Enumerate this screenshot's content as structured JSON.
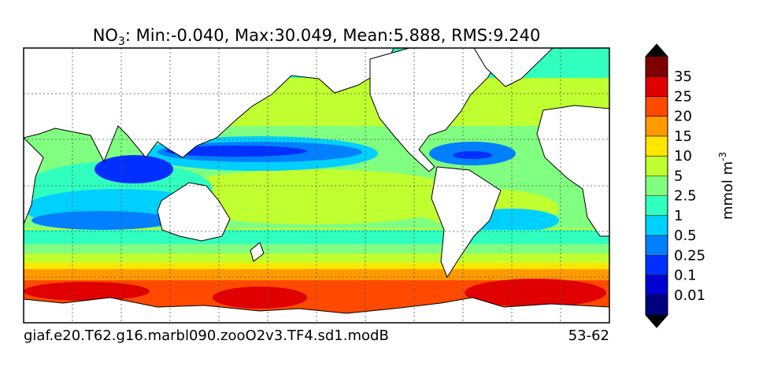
{
  "title": {
    "species": "NO",
    "subscript": "3",
    "stats": ": Min:-0.040, Max:30.049, Mean:5.888, RMS:9.240"
  },
  "colorbar": {
    "labels": [
      "0.01",
      "0.1",
      "0.25",
      "0.5",
      "1",
      "2.5",
      "5",
      "10",
      "15",
      "20",
      "25",
      "35"
    ],
    "colors": [
      "#00007f",
      "#0000d0",
      "#0030ff",
      "#0080ff",
      "#00d0ff",
      "#30ffc0",
      "#80ff80",
      "#c0ff30",
      "#ffe600",
      "#ff9a00",
      "#ff4a00",
      "#e00000",
      "#7f0000"
    ],
    "unit": "mmol m",
    "unit_exponent": "-3"
  },
  "footer": {
    "case": "giaf.e20.T62.g16.marbl090.zooO2v3.TF4.sd1.modB",
    "years": "53-62"
  }
}
